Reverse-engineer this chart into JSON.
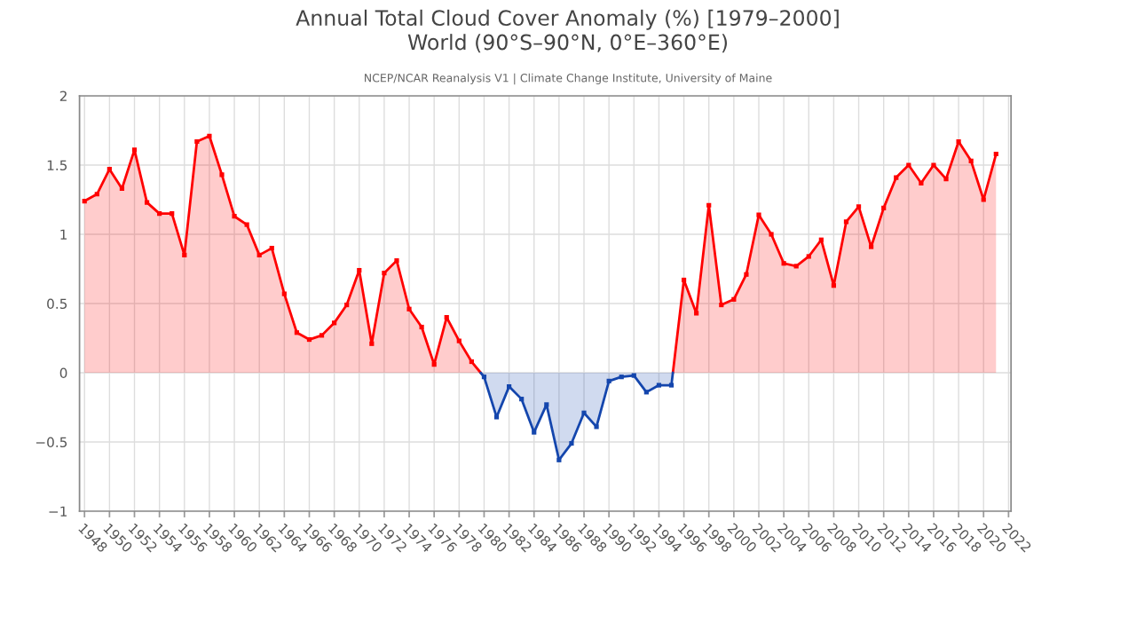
{
  "chart_data": {
    "type": "area",
    "title": "Annual Total Cloud Cover Anomaly (%) [1979–2000]\nWorld (90°S–90°N, 0°E–360°E)",
    "subtitle": "NCEP/NCAR Reanalysis V1 | Climate Change Institute, University of Maine",
    "x": [
      1948,
      1949,
      1950,
      1951,
      1952,
      1953,
      1954,
      1955,
      1956,
      1957,
      1958,
      1959,
      1960,
      1961,
      1962,
      1963,
      1964,
      1965,
      1966,
      1967,
      1968,
      1969,
      1970,
      1971,
      1972,
      1973,
      1974,
      1975,
      1976,
      1977,
      1978,
      1979,
      1980,
      1981,
      1982,
      1983,
      1984,
      1985,
      1986,
      1987,
      1988,
      1989,
      1990,
      1991,
      1992,
      1993,
      1994,
      1995,
      1996,
      1997,
      1998,
      1999,
      2000,
      2001,
      2002,
      2003,
      2004,
      2005,
      2006,
      2007,
      2008,
      2009,
      2010,
      2011,
      2012,
      2013,
      2014,
      2015,
      2016,
      2017,
      2018,
      2019,
      2020,
      2021
    ],
    "series": [
      {
        "color": "#ff0000",
        "values": [
          1.24,
          1.29,
          1.47,
          1.33,
          1.61,
          1.23,
          1.15,
          1.15,
          0.85,
          1.67,
          1.71,
          1.43,
          1.13,
          1.07,
          0.85,
          0.9,
          0.57,
          0.29,
          0.24,
          0.27,
          0.36,
          0.49,
          0.74,
          0.21,
          0.72,
          0.81,
          0.46,
          0.33,
          0.06,
          0.4,
          0.23,
          0.08,
          null,
          null,
          null,
          null,
          null,
          null,
          null,
          null,
          null,
          null,
          null,
          null,
          null,
          null,
          null,
          null,
          0.67,
          0.43,
          1.21,
          0.49,
          0.53,
          0.71,
          1.14,
          1.0,
          0.79,
          0.77,
          0.84,
          0.96,
          0.63,
          1.09,
          1.2,
          0.91,
          1.19,
          1.41,
          1.5,
          1.37,
          1.5,
          1.4,
          1.67,
          1.53,
          1.25,
          1.58
        ]
      },
      {
        "color": "#1446ad",
        "values": [
          null,
          null,
          null,
          null,
          null,
          null,
          null,
          null,
          null,
          null,
          null,
          null,
          null,
          null,
          null,
          null,
          null,
          null,
          null,
          null,
          null,
          null,
          null,
          null,
          null,
          null,
          null,
          null,
          null,
          null,
          null,
          null,
          -0.03,
          -0.32,
          -0.1,
          -0.19,
          -0.43,
          -0.23,
          -0.63,
          -0.51,
          -0.29,
          -0.39,
          -0.06,
          -0.03,
          -0.02,
          -0.14,
          -0.09,
          -0.09,
          null,
          null,
          null,
          null,
          null,
          null,
          null,
          null,
          null,
          null,
          null,
          null,
          null,
          null,
          null,
          null,
          null,
          null,
          null,
          null,
          null,
          null,
          null,
          null,
          null,
          null
        ]
      }
    ],
    "xlim": [
      1947.6,
      2022.2
    ],
    "xticks": [
      1948,
      1950,
      1952,
      1954,
      1956,
      1958,
      1960,
      1962,
      1964,
      1966,
      1968,
      1970,
      1972,
      1974,
      1976,
      1978,
      1980,
      1982,
      1984,
      1986,
      1988,
      1990,
      1992,
      1994,
      1996,
      1998,
      2000,
      2002,
      2004,
      2006,
      2008,
      2010,
      2012,
      2014,
      2016,
      2018,
      2020,
      2022
    ],
    "ylim": [
      -1,
      2
    ],
    "yticks": [
      {
        "value": -1,
        "label": "−1"
      },
      {
        "value": -0.5,
        "label": "−0.5"
      },
      0,
      0.5,
      1,
      1.5,
      2
    ],
    "grid": true,
    "marker": "square",
    "line_style": "solid"
  }
}
